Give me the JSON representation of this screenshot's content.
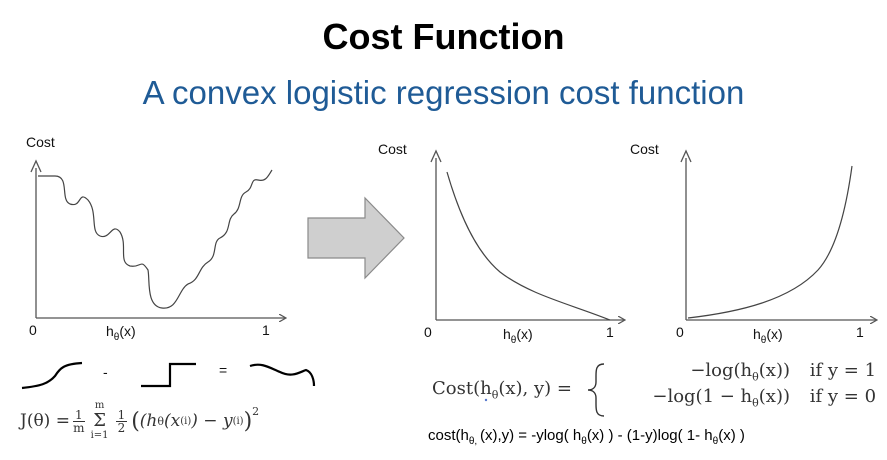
{
  "slide": {
    "title": "Cost Function",
    "subtitle": "A convex logistic regression cost function"
  },
  "left_plot": {
    "y_label": "Cost",
    "x_label_main": "h",
    "x_label_sub": "θ",
    "x_label_tail": "(x)",
    "x_start": "0",
    "x_end": "1"
  },
  "middle_plot": {
    "y_label": "Cost",
    "x_label_main": "h",
    "x_label_sub": "θ",
    "x_label_tail": "(x)",
    "x_start": "0",
    "x_end": "1"
  },
  "right_plot": {
    "y_label": "Cost",
    "x_label_main": "h",
    "x_label_sub": "θ",
    "x_label_tail": "(x)",
    "x_start": "0",
    "x_end": "1"
  },
  "sketch_row": {
    "minus": "-",
    "equals": "="
  },
  "j_equation": {
    "lhs": "J(θ) = ",
    "frac1_num": "1",
    "frac1_den": "m",
    "sum_top": "m",
    "sum_sym": "Σ",
    "sum_bottom": "i=1",
    "frac2_num": "1",
    "frac2_den": "2",
    "body": "(h",
    "body_sub": "θ",
    "body_rest": "(x",
    "sup_i": "(i)",
    "minus_y": ") − y",
    "sup_i2": "(i)",
    "close": ")",
    "power": "2"
  },
  "cost_piecewise": {
    "lhs": "Cost(h",
    "lhs_sub": "θ",
    "lhs_rest": "(x), y) =",
    "case1_expr": "−log(h",
    "case1_sub": "θ",
    "case1_tail": "(x))",
    "case1_cond": "if y = 1",
    "case2_expr": "−log(1 − h",
    "case2_sub": "θ",
    "case2_tail": "(x))",
    "case2_cond": "if y = 0"
  },
  "cost_formula": {
    "p1": "cost(h",
    "p1_sub": "θ, ",
    "p2": "(x),y) = -ylog( h",
    "p2_sub": "θ",
    "p3": "(x) ) - (1-y)log( 1- h",
    "p3_sub": "θ",
    "p4": "(x) )"
  }
}
